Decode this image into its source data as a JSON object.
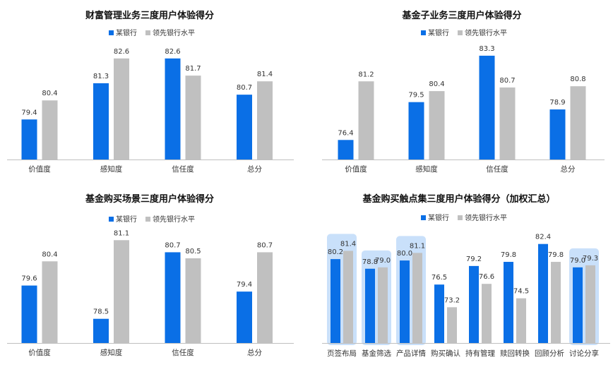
{
  "colors": {
    "bank": "#0a6fe6",
    "leader": "#c0c0c0",
    "highlight": "#c9e0fa",
    "axis": "#bfbfbf"
  },
  "legend": {
    "bank": "某银行",
    "leader": "领先银行水平"
  },
  "chart_data": [
    {
      "type": "bar",
      "title": "财富管理业务三度用户体验得分",
      "categories": [
        "价值度",
        "感知度",
        "信任度",
        "总分"
      ],
      "series": [
        {
          "name": "某银行",
          "values": [
            79.4,
            81.3,
            82.6,
            80.7
          ]
        },
        {
          "name": "领先银行水平",
          "values": [
            80.4,
            82.6,
            81.7,
            81.4
          ]
        }
      ],
      "ylim": [
        77.3,
        83.0
      ],
      "legend_position": "top"
    },
    {
      "type": "bar",
      "title": "基金子业务三度用户体验得分",
      "categories": [
        "价值度",
        "感知度",
        "信任度",
        "总分"
      ],
      "series": [
        {
          "name": "某银行",
          "values": [
            76.4,
            79.5,
            83.3,
            78.9
          ]
        },
        {
          "name": "领先银行水平",
          "values": [
            81.2,
            80.4,
            80.7,
            80.8
          ]
        }
      ],
      "ylim": [
        74.8,
        83.7
      ],
      "legend_position": "top"
    },
    {
      "type": "bar",
      "title": "基金购买场景三度用户体验得分",
      "categories": [
        "价值度",
        "感知度",
        "信任度",
        "总分"
      ],
      "series": [
        {
          "name": "某银行",
          "values": [
            79.6,
            78.5,
            80.7,
            79.4
          ]
        },
        {
          "name": "领先银行水平",
          "values": [
            80.4,
            81.1,
            80.5,
            80.7
          ]
        }
      ],
      "ylim": [
        77.7,
        81.2
      ],
      "legend_position": "top"
    },
    {
      "type": "bar",
      "title": "基金购买触点集三度用户体验得分（加权汇总）",
      "categories": [
        "页签布局",
        "基金筛选",
        "产品详情",
        "购买确认",
        "持有管理",
        "赎回转换",
        "回顾分析",
        "讨论分享"
      ],
      "series": [
        {
          "name": "某银行",
          "values": [
            80.2,
            78.8,
            80.0,
            76.5,
            79.2,
            79.8,
            82.4,
            79.0
          ]
        },
        {
          "name": "领先银行水平",
          "values": [
            81.4,
            79.0,
            81.1,
            73.2,
            76.6,
            74.5,
            79.8,
            79.3
          ]
        }
      ],
      "highlighted_categories": [
        "页签布局",
        "基金筛选",
        "产品详情",
        "讨论分享"
      ],
      "ylim": [
        68.0,
        83.6
      ],
      "legend_position": "top"
    }
  ]
}
